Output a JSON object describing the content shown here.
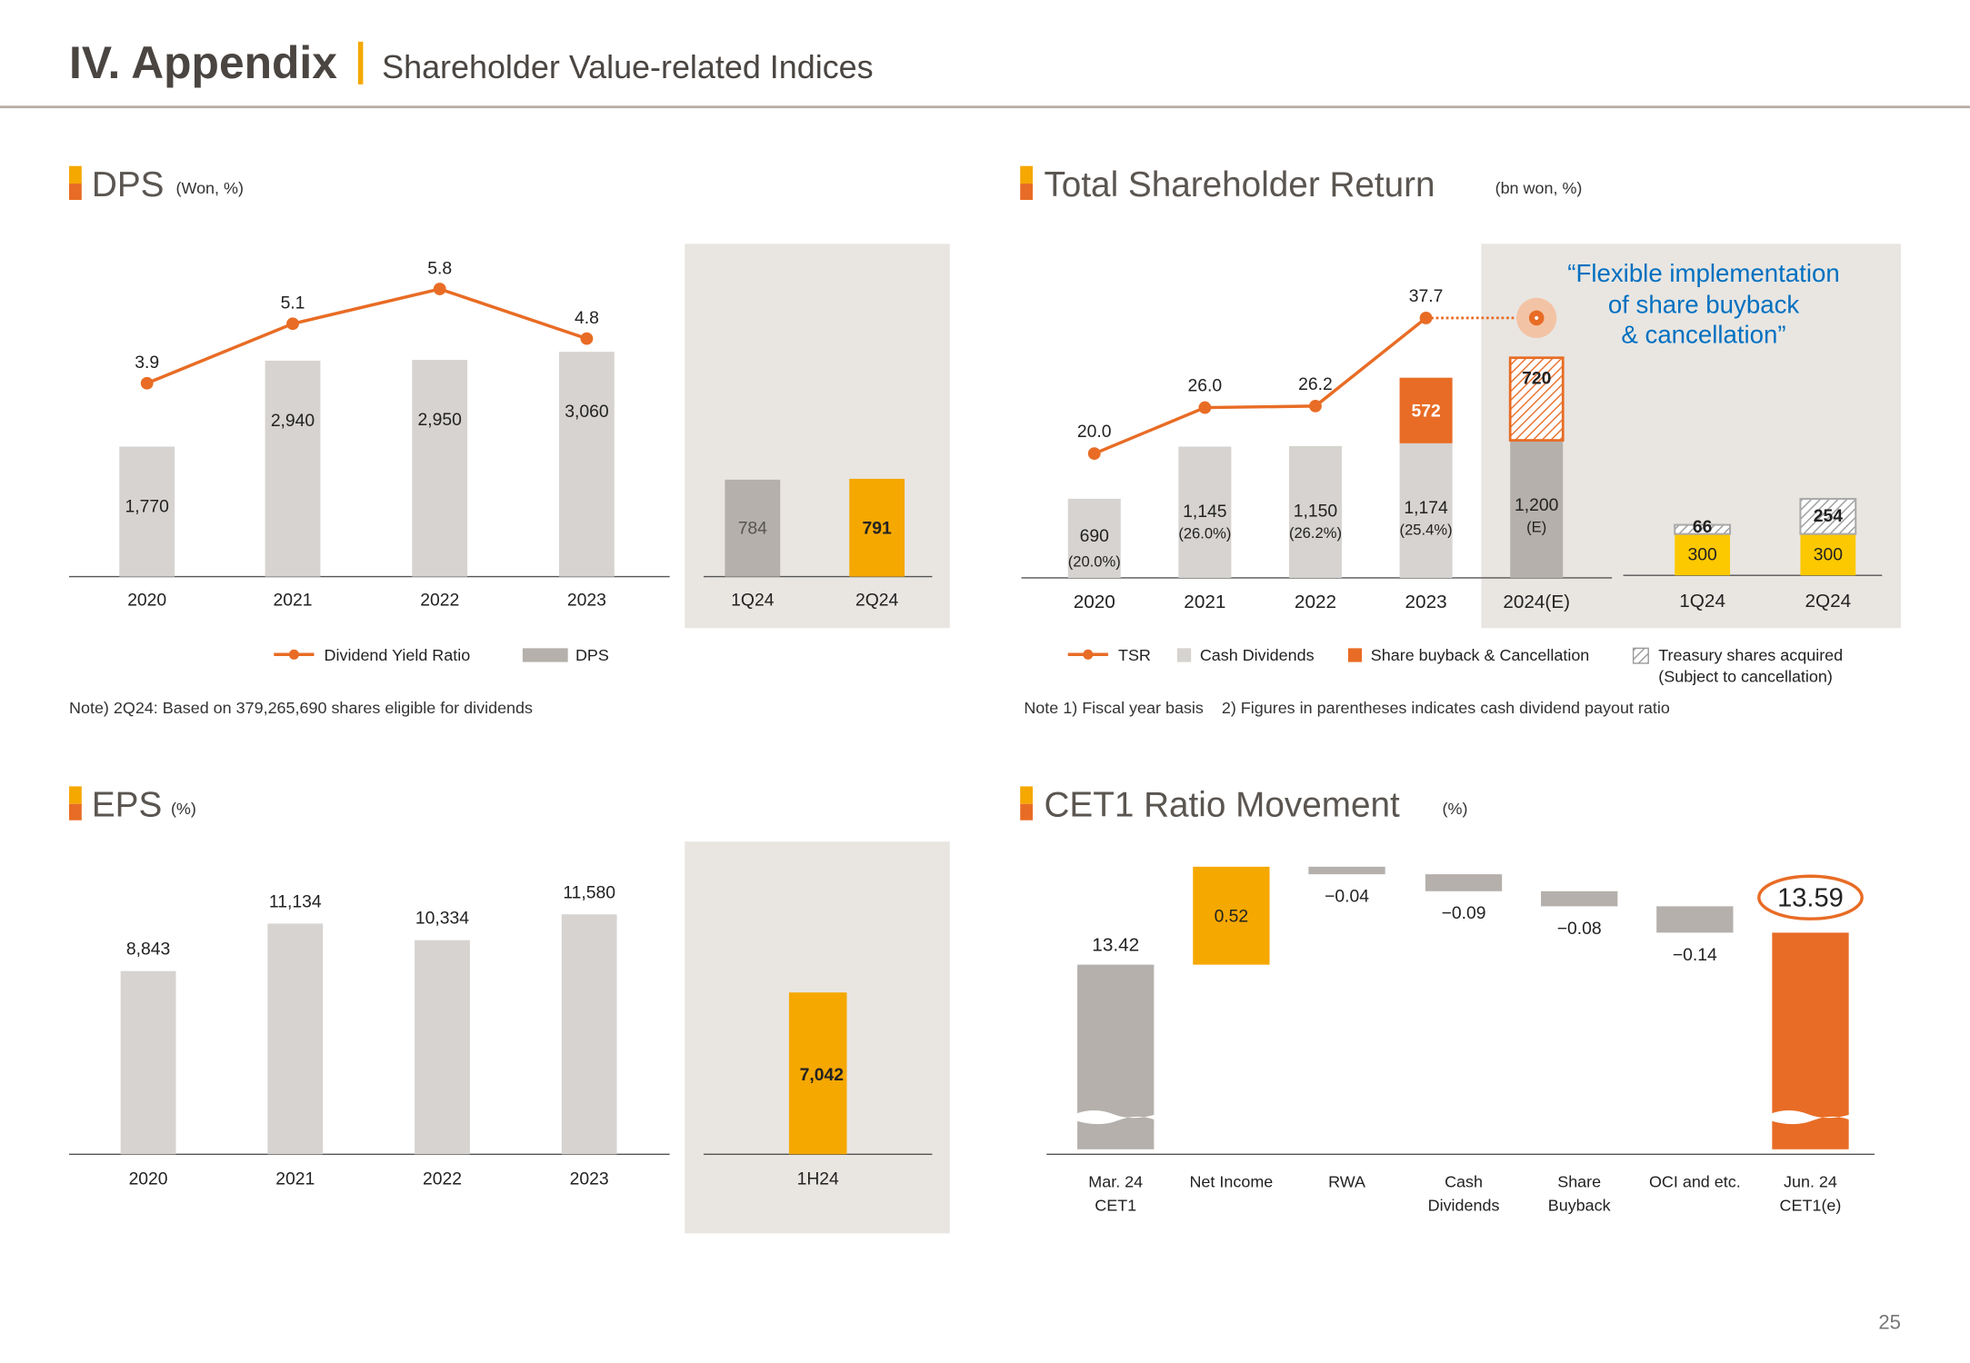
{
  "header": {
    "title": "IV. Appendix",
    "subtitle": "Shareholder Value-related Indices"
  },
  "page_number": "25",
  "colors": {
    "orange": "#e86c25",
    "yellow": "#f5a800",
    "bright_yellow": "#fcc800",
    "light_grey": "#d6d3d0",
    "dark_grey": "#b5b0ab",
    "panel": "#e9e6e2",
    "blue": "#0070c0"
  },
  "sections": {
    "dps": {
      "title": "DPS",
      "unit": "(Won, %)",
      "note": "Note) 2Q24: Based on 379,265,690 shares eligible for dividends"
    },
    "tsr": {
      "title": "Total Shareholder Return",
      "unit": "(bn won, %)",
      "note": "Note 1) Fiscal year basis    2) Figures in parentheses indicates cash dividend payout ratio",
      "callout": [
        "“Flexible implementation",
        "of share buyback",
        "& cancellation”"
      ]
    },
    "eps": {
      "title": "EPS",
      "unit": "(%)"
    },
    "cet1": {
      "title": "CET1 Ratio Movement",
      "unit": "(%)"
    }
  },
  "chart_data": [
    {
      "id": "dps",
      "type": "bar+line",
      "categories": [
        "2020",
        "2021",
        "2022",
        "2023"
      ],
      "series": [
        {
          "name": "DPS",
          "type": "bar",
          "values": [
            1770,
            2940,
            2950,
            3060
          ],
          "labels": [
            "1,770",
            "2,940",
            "2,950",
            "3,060"
          ]
        },
        {
          "name": "Dividend Yield Ratio",
          "type": "line",
          "values": [
            3.9,
            5.1,
            5.8,
            4.8
          ],
          "labels": [
            "3.9",
            "5.1",
            "5.8",
            "4.8"
          ]
        }
      ],
      "quarterly": {
        "categories": [
          "1Q24",
          "2Q24"
        ],
        "values": [
          784,
          791
        ],
        "labels": [
          "784",
          "791"
        ]
      },
      "legend": [
        "Dividend Yield Ratio",
        "DPS"
      ],
      "legend_position": "bottom"
    },
    {
      "id": "tsr",
      "type": "stacked-bar+line",
      "categories": [
        "2020",
        "2021",
        "2022",
        "2023",
        "2024(E)"
      ],
      "series": [
        {
          "name": "Cash Dividends",
          "type": "bar",
          "values": [
            690,
            1145,
            1150,
            1174,
            1200
          ],
          "labels": [
            "690",
            "1,145",
            "1,150",
            "1,174",
            "1,200"
          ],
          "sublabels": [
            "(20.0%)",
            "(26.0%)",
            "(26.2%)",
            "(25.4%)",
            "(E)"
          ]
        },
        {
          "name": "Share buyback & Cancellation",
          "type": "bar",
          "values": [
            0,
            0,
            0,
            572,
            720
          ],
          "labels": [
            "",
            "",
            "",
            "572",
            "720"
          ]
        },
        {
          "name": "TSR",
          "type": "line",
          "values": [
            20.0,
            26.0,
            26.2,
            37.7,
            null
          ],
          "labels": [
            "20.0",
            "26.0",
            "26.2",
            "37.7",
            ""
          ]
        }
      ],
      "quarterly": {
        "categories": [
          "1Q24",
          "2Q24"
        ],
        "share_buyback": [
          300,
          300
        ],
        "buyback_labels": [
          "300",
          "300"
        ],
        "treasury_shares": [
          66,
          254
        ],
        "treasury_labels": [
          "66",
          "254"
        ]
      },
      "legend": [
        "TSR",
        "Cash Dividends",
        "Share buyback & Cancellation",
        "Treasury shares acquired",
        "(Subject to cancellation)"
      ],
      "legend_position": "bottom"
    },
    {
      "id": "eps",
      "type": "bar",
      "categories": [
        "2020",
        "2021",
        "2022",
        "2023"
      ],
      "values": [
        8843,
        11134,
        10334,
        11580
      ],
      "labels": [
        "8,843",
        "11,134",
        "10,334",
        "11,580"
      ],
      "half": {
        "categories": [
          "1H24"
        ],
        "values": [
          7042
        ],
        "labels": [
          "7,042"
        ]
      }
    },
    {
      "id": "cet1",
      "type": "waterfall",
      "categories": [
        [
          "Mar. 24",
          "CET1"
        ],
        [
          "Net Income"
        ],
        [
          "RWA"
        ],
        [
          "Cash",
          "Dividends"
        ],
        [
          "Share",
          "Buyback"
        ],
        [
          "OCI and etc."
        ],
        [
          "Jun. 24",
          "CET1(e)"
        ]
      ],
      "values": [
        13.42,
        0.52,
        -0.04,
        -0.09,
        -0.08,
        -0.14,
        13.59
      ],
      "labels": [
        "13.42",
        "0.52",
        "-0.04",
        "-0.09",
        "-0.08",
        "-0.14",
        "13.59"
      ]
    }
  ]
}
